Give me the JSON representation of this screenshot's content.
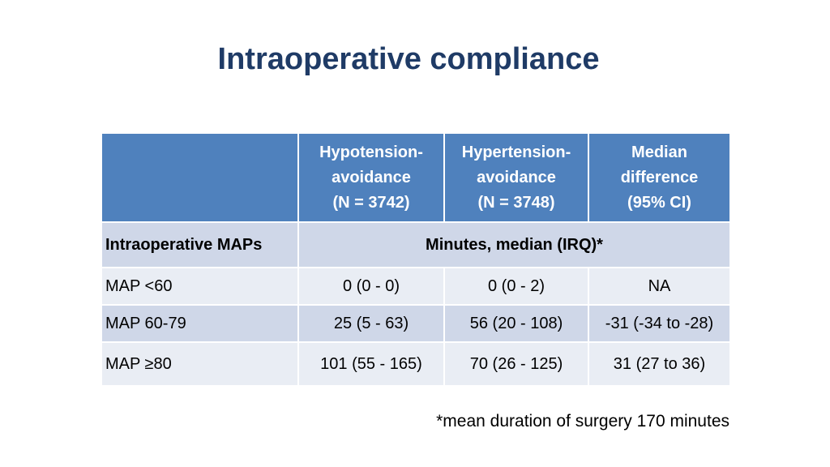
{
  "title": "Intraoperative compliance",
  "table": {
    "columns": [
      {
        "lines": [
          "Hypotension-",
          "avoidance",
          "(N = 3742)"
        ]
      },
      {
        "lines": [
          "Hypertension-",
          "avoidance",
          "(N = 3748)"
        ]
      },
      {
        "lines": [
          "Median",
          "difference",
          "(95% CI)"
        ]
      }
    ],
    "subheader": {
      "label": "Intraoperative MAPs",
      "span_text": "Minutes, median (IRQ)*"
    },
    "rows": [
      {
        "label": "MAP <60",
        "cells": [
          "0 (0 - 0)",
          "0 (0 - 2)",
          "NA"
        ]
      },
      {
        "label": "MAP 60-79",
        "cells": [
          "25 (5 - 63)",
          "56 (20 - 108)",
          "-31 (-34 to -28)"
        ]
      },
      {
        "label": "MAP ≥80",
        "cells": [
          "101 (55 - 165)",
          "70 (26 - 125)",
          "31 (27 to 36)"
        ]
      }
    ]
  },
  "footnote": "*mean duration of surgery 170 minutes",
  "colors": {
    "title": "#1f3b66",
    "header_bg": "#4f81bd",
    "band_dark": "#cfd7e8",
    "band_light": "#e9edf4"
  }
}
